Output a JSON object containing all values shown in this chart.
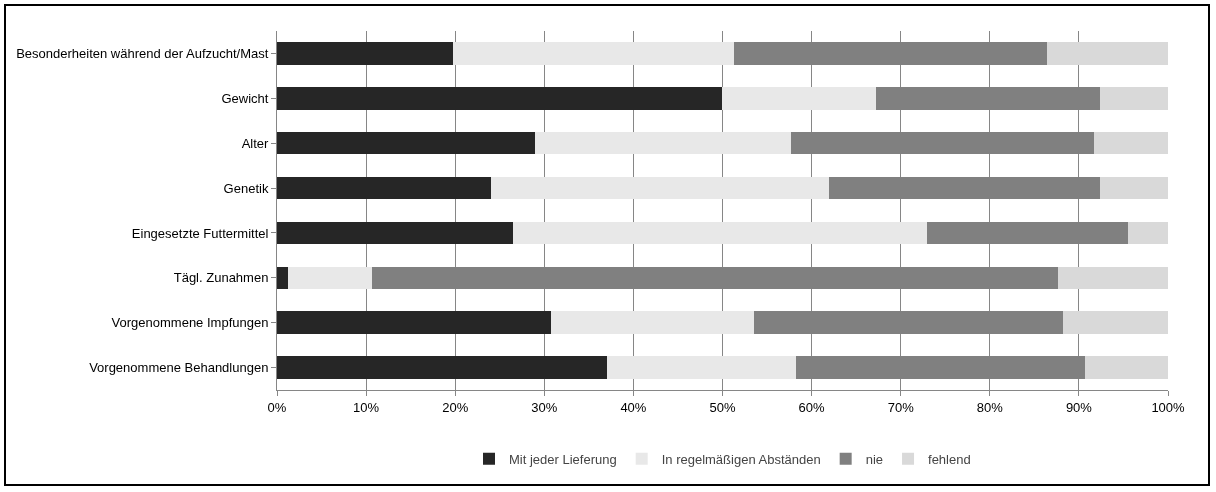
{
  "chart_data": {
    "type": "bar",
    "orientation": "horizontal",
    "stacked": true,
    "categories": [
      "Besonderheiten während der Aufzucht/Mast",
      "Gewicht",
      "Alter",
      "Genetik",
      "Eingesetzte Futtermittel",
      "Tägl. Zunahmen",
      "Vorgenommene Impfungen",
      "Vorgenommene Behandlungen"
    ],
    "series": [
      {
        "name": "Mit jeder Lieferung",
        "color": "#262626",
        "values": [
          19.8,
          49.9,
          28.9,
          24.0,
          26.5,
          1.2,
          30.7,
          37.0
        ]
      },
      {
        "name": "In regelmäßigen Abständen",
        "color": "#e8e8e8",
        "values": [
          31.5,
          17.3,
          28.8,
          37.9,
          46.5,
          9.5,
          22.8,
          21.3
        ]
      },
      {
        "name": "nie",
        "color": "#808080",
        "values": [
          35.1,
          25.2,
          34.0,
          30.5,
          22.5,
          77.0,
          34.7,
          32.4
        ]
      },
      {
        "name": "fehlend",
        "color": "#d9d9d9",
        "values": [
          13.6,
          7.6,
          8.3,
          7.6,
          4.5,
          12.3,
          11.8,
          9.3
        ]
      }
    ],
    "xlim": [
      0,
      100
    ],
    "xticks": [
      {
        "value": 0,
        "label": "0%"
      },
      {
        "value": 10,
        "label": "10%"
      },
      {
        "value": 20,
        "label": "20%"
      },
      {
        "value": 30,
        "label": "30%"
      },
      {
        "value": 40,
        "label": "40%"
      },
      {
        "value": 50,
        "label": "50%"
      },
      {
        "value": 60,
        "label": "60%"
      },
      {
        "value": 70,
        "label": "70%"
      },
      {
        "value": 80,
        "label": "80%"
      },
      {
        "value": 90,
        "label": "90%"
      },
      {
        "value": 100,
        "label": "100%"
      }
    ],
    "grid": "x",
    "legend": "bottom"
  }
}
